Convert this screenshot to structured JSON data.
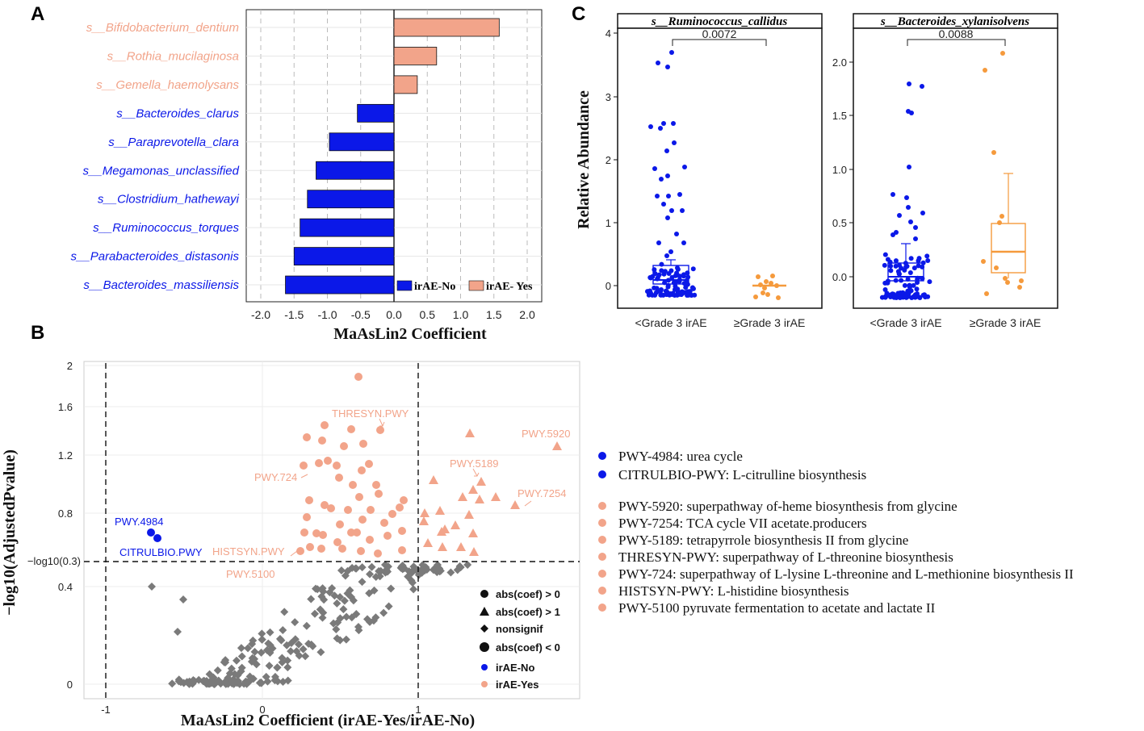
{
  "colors": {
    "blue": "#0b18e8",
    "salmon": "#f2a48a",
    "orange": "#f59a3c",
    "gray": "#7a7a7a"
  },
  "panels": {
    "a": "A",
    "b": "B",
    "c": "C"
  },
  "chart_data": [
    {
      "type": "bar",
      "id": "A",
      "xlabel": "MaAsLin2 Coefficient",
      "xlim": [
        -2.0,
        2.0
      ],
      "xticks": [
        "-2.0",
        "-1.5",
        "-1.0",
        "-0.5",
        "0.0",
        "0.5",
        "1.0",
        "1.5",
        "2.0"
      ],
      "categories": [
        "s__Bifidobacterium_dentium",
        "s__Rothia_mucilaginosa",
        "s__Gemella_haemolysans",
        "s__Bacteroides_clarus",
        "s__Paraprevotella_clara",
        "s__Megamonas_unclassified",
        "s__Clostridium_hathewayi",
        "s__Ruminococcus_torques",
        "s__Parabacteroides_distasonis",
        "s__Bacteroides_massiliensis"
      ],
      "values": [
        1.58,
        0.64,
        0.35,
        -0.55,
        -0.97,
        -1.17,
        -1.3,
        -1.41,
        -1.5,
        -1.63
      ],
      "legend": [
        "irAE-No",
        "irAE- Yes"
      ]
    },
    {
      "type": "scatter",
      "id": "B",
      "xlabel": "MaAsLin2 Coefficient (irAE-Yes/irAE-No)",
      "ylabel": "−log10(AdjustedPvalue)",
      "yticks": [
        "2",
        "1.6",
        "1.2",
        "0.8",
        "0.4",
        "0"
      ],
      "xticks": [
        "-1",
        "0",
        "1"
      ],
      "threshold_label": "−log10(0.3)",
      "point_labels": [
        "PWY.4984",
        "CITRULBIO.PWY",
        "HISTSYN.PWY",
        "PWY.5100",
        "PWY.724",
        "THRESYN.PWY",
        "PWY.5189",
        "PWY.7254",
        "PWY.5920"
      ],
      "legend": [
        "abs(coef) > 0",
        "abs(coef) > 1",
        "nonsignif",
        "abs(coef) < 0",
        "irAE-No",
        "irAE-Yes"
      ]
    },
    {
      "type": "box",
      "id": "C1",
      "title": "s__Ruminococcus_callidus",
      "ylabel": "Relative Abundance",
      "yticks": [
        "4",
        "3",
        "2",
        "1",
        "0"
      ],
      "categories": [
        "<Grade 3 irAE",
        "≥Grade 3 irAE"
      ],
      "pvalue": "0.0072"
    },
    {
      "type": "box",
      "id": "C2",
      "title": "s__Bacteroides_xylanisolvens",
      "yticks": [
        "2.0",
        "1.5",
        "1.0",
        "0.5",
        "0.0"
      ],
      "categories": [
        "<Grade 3 irAE",
        "≥Grade 3 irAE"
      ],
      "pvalue": "0.0088"
    }
  ],
  "pathway_legend": {
    "blue": [
      "PWY-4984: urea cycle",
      "CITRULBIO-PWY: L-citrulline biosynthesis"
    ],
    "salmon": [
      "PWY-5920: superpathway of-heme biosynthesis from glycine",
      "PWY-7254: TCA cycle VII acetate.producers",
      "PWY-5189: tetrapyrrole biosynthesis II from glycine",
      "THRESYN-PWY: superpathway of L-threonine biosynthesis",
      "PWY-724: superpathway of L-lysine L-threonine and L-methionine biosynthesis II",
      "HISTSYN-PWY: L-histidine biosynthesis",
      "PWY-5100 pyruvate fermentation to acetate and lactate II"
    ]
  }
}
